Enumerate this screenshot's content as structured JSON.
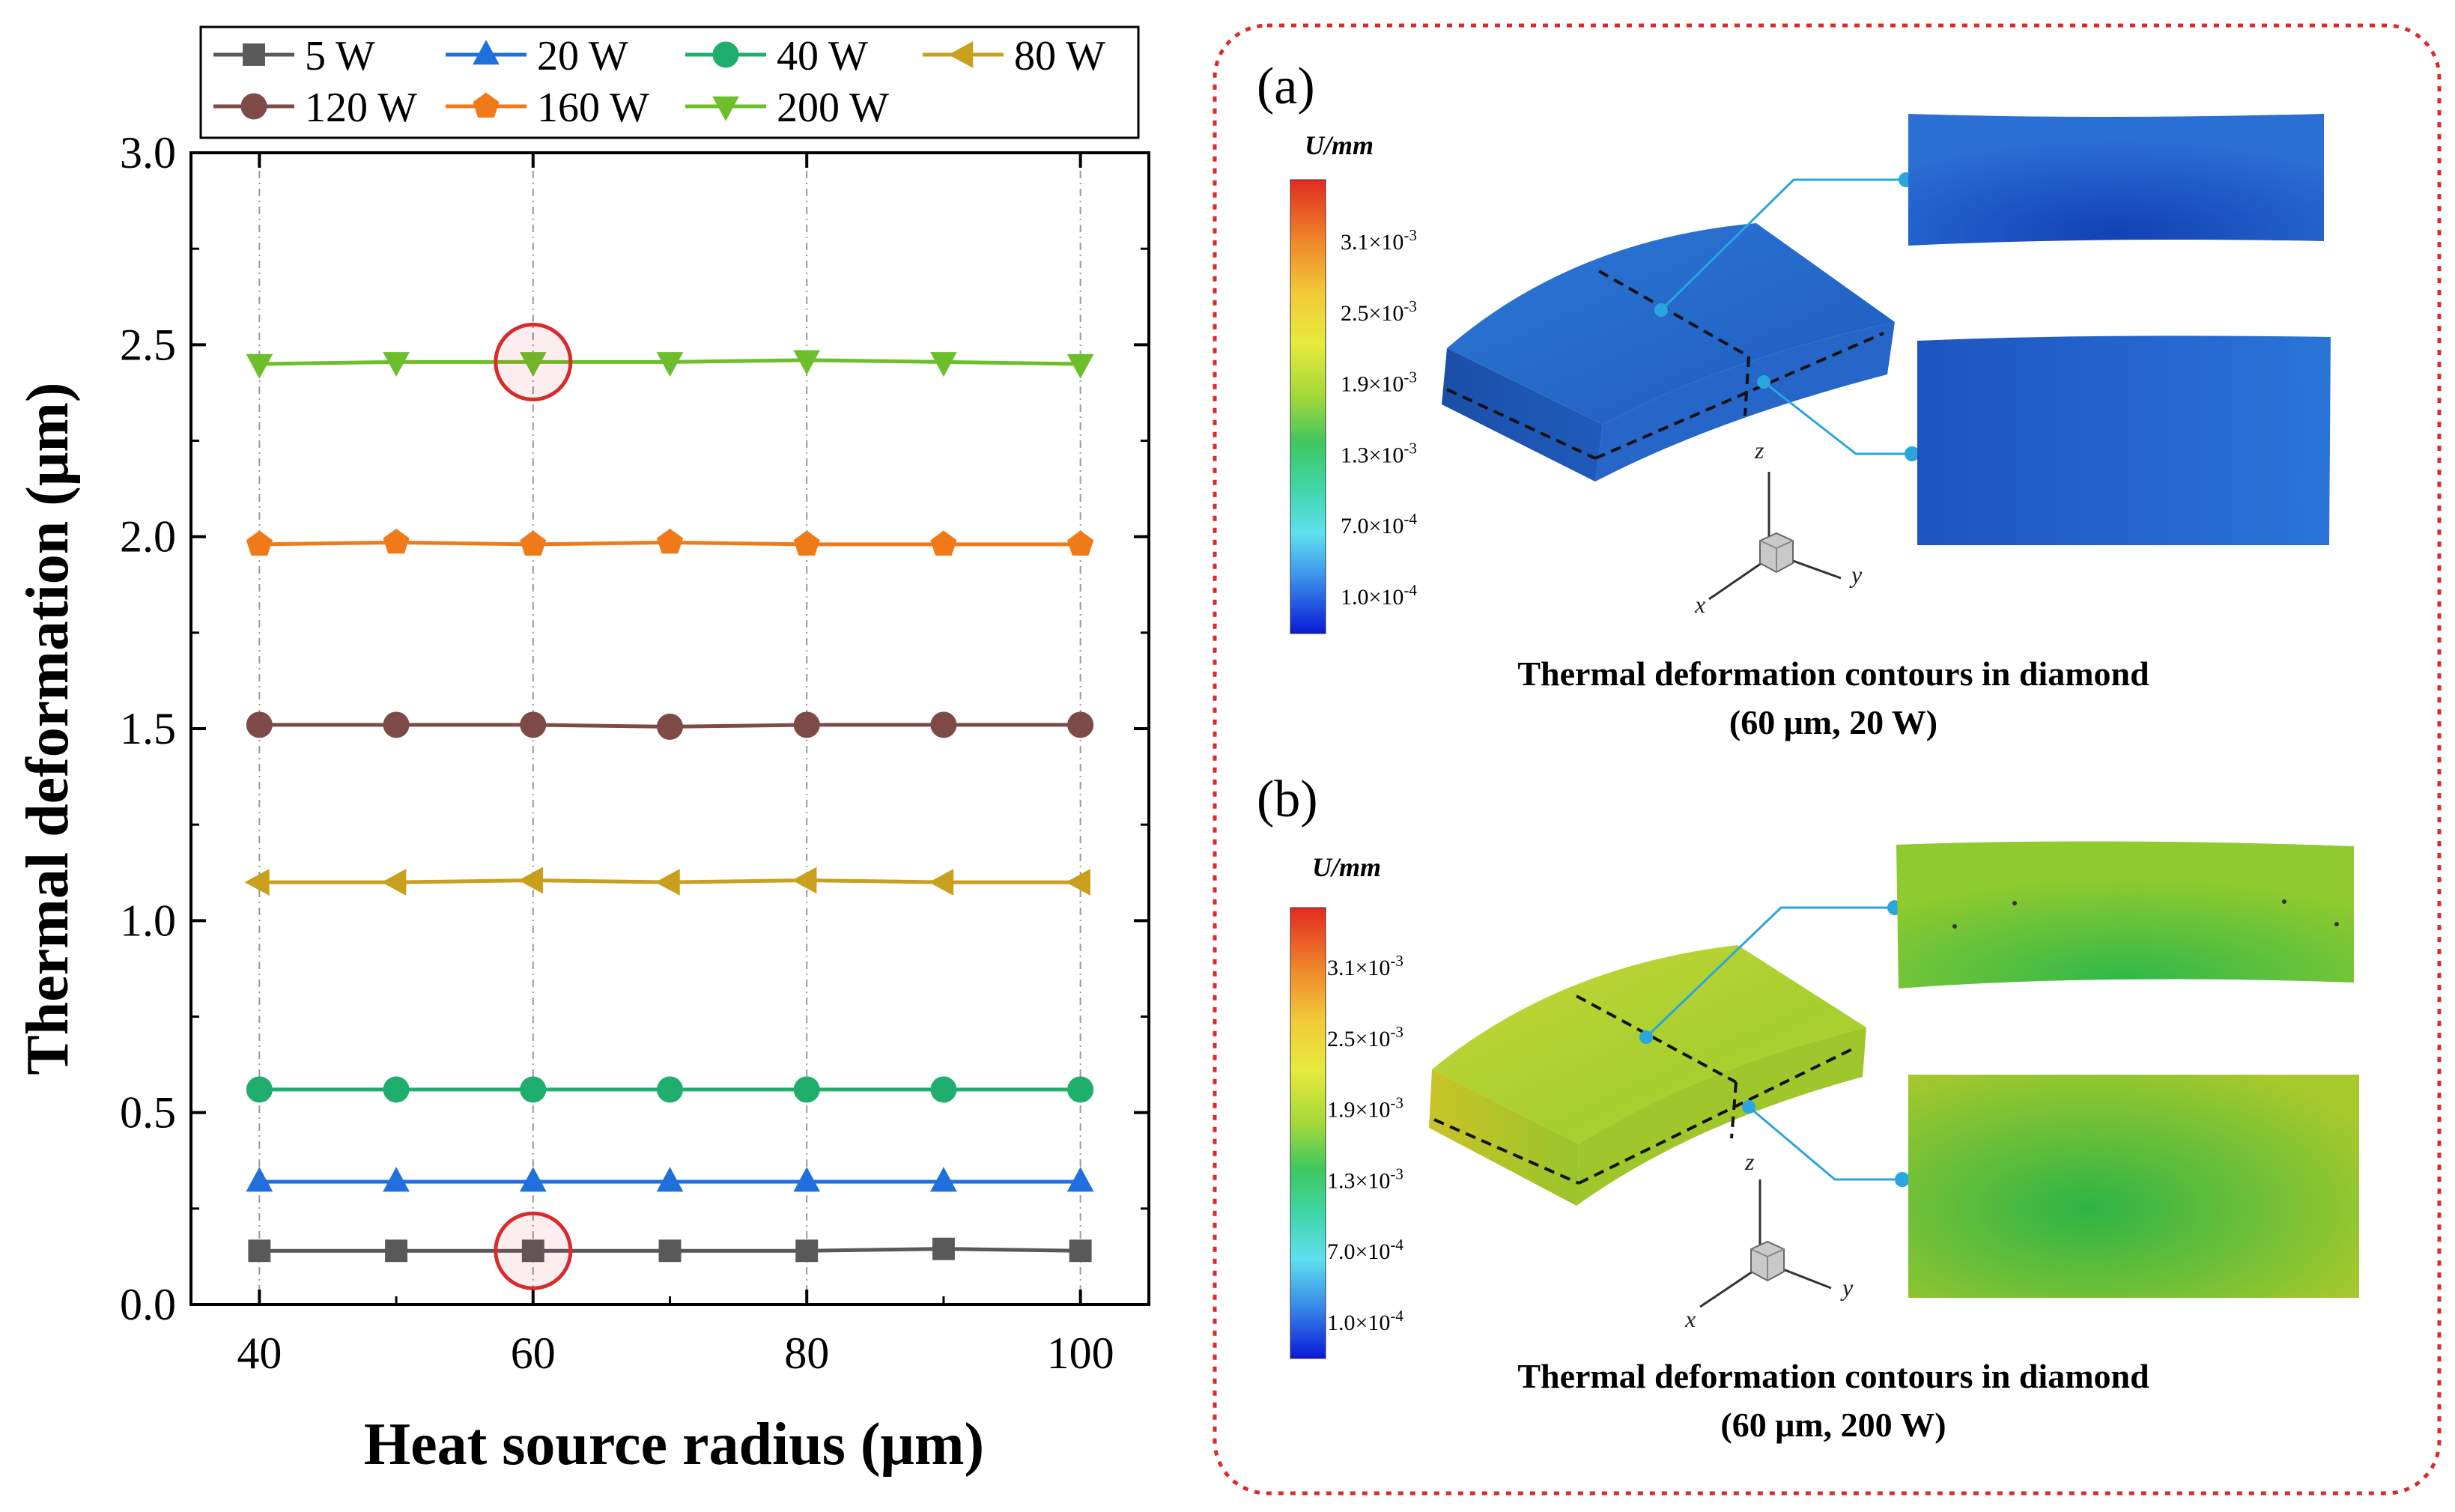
{
  "chart_data": {
    "type": "line",
    "xlabel": "Heat source radius (μm)",
    "ylabel": "Thermal deformation (μm)",
    "x": [
      40,
      50,
      60,
      70,
      80,
      90,
      100
    ],
    "xlim": [
      35,
      105
    ],
    "ylim": [
      0,
      3.0
    ],
    "xticks": [
      "40",
      "60",
      "80",
      "100"
    ],
    "xtick_values": [
      40,
      60,
      80,
      100
    ],
    "yticks": [
      "0.0",
      "0.5",
      "1.0",
      "1.5",
      "2.0",
      "2.5",
      "3.0"
    ],
    "ytick_values": [
      0,
      0.5,
      1.0,
      1.5,
      2.0,
      2.5,
      3.0
    ],
    "grid": "vertical dashed at x ticks",
    "legend_position": "top",
    "series": [
      {
        "name": "5 W",
        "color": "#595959",
        "marker": "square",
        "values": [
          0.14,
          0.14,
          0.14,
          0.14,
          0.14,
          0.145,
          0.14
        ]
      },
      {
        "name": "20 W",
        "color": "#1f6fdc",
        "marker": "triangle-up",
        "values": [
          0.32,
          0.32,
          0.32,
          0.32,
          0.32,
          0.32,
          0.32
        ]
      },
      {
        "name": "40 W",
        "color": "#1fae6e",
        "marker": "circle",
        "values": [
          0.56,
          0.56,
          0.56,
          0.56,
          0.56,
          0.56,
          0.56
        ]
      },
      {
        "name": "80 W",
        "color": "#c8a01e",
        "marker": "triangle-left",
        "values": [
          1.1,
          1.1,
          1.105,
          1.1,
          1.105,
          1.1,
          1.1
        ]
      },
      {
        "name": "120 W",
        "color": "#7d4a48",
        "marker": "circle",
        "values": [
          1.51,
          1.51,
          1.51,
          1.505,
          1.51,
          1.51,
          1.51
        ]
      },
      {
        "name": "160 W",
        "color": "#f07a1a",
        "marker": "pentagon",
        "values": [
          1.98,
          1.985,
          1.98,
          1.985,
          1.98,
          1.98,
          1.98
        ]
      },
      {
        "name": "200 W",
        "color": "#6cbf2a",
        "marker": "triangle-down",
        "values": [
          2.45,
          2.455,
          2.455,
          2.455,
          2.46,
          2.455,
          2.45
        ]
      }
    ],
    "highlights": [
      {
        "series": "200 W",
        "x": 60
      },
      {
        "series": "5 W",
        "x": 60
      }
    ]
  },
  "panels": {
    "a": {
      "label": "(a)",
      "colorbar_title": "U/mm",
      "colorbar_ticks": [
        "3.1×10",
        "2.5×10",
        "1.9×10",
        "1.3×10",
        "7.0×10",
        "1.0×10"
      ],
      "colorbar_exponents": [
        "-3",
        "-3",
        "-3",
        "-3",
        "-4",
        "-4"
      ],
      "axes": [
        "z",
        "y",
        "x"
      ],
      "caption_line1": "Thermal deformation contours in diamond",
      "caption_line2": "(60 μm, 20 W)"
    },
    "b": {
      "label": "(b)",
      "colorbar_title": "U/mm",
      "colorbar_ticks": [
        "3.1×10",
        "2.5×10",
        "1.9×10",
        "1.3×10",
        "7.0×10",
        "1.0×10"
      ],
      "colorbar_exponents": [
        "-3",
        "-3",
        "-3",
        "-3",
        "-4",
        "-4"
      ],
      "axes": [
        "z",
        "y",
        "x"
      ],
      "caption_line1": "Thermal deformation contours in diamond",
      "caption_line2": "(60 μm, 200 W)"
    }
  },
  "colors": {
    "highlight_circle": "#d92b2b",
    "panel_border": "#d92b2b",
    "leader_line": "#29a6dd"
  }
}
